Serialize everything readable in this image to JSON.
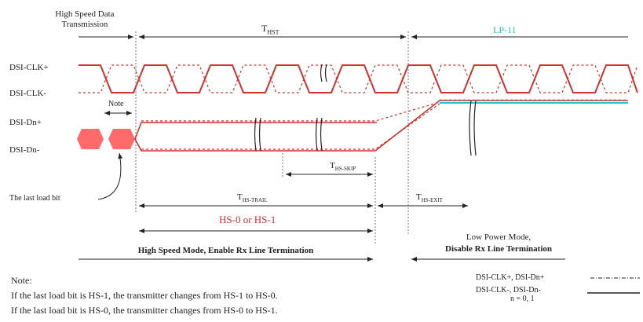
{
  "diagram": {
    "title_line1": "High Speed Data",
    "title_line2": "Transmission",
    "t_hst": "Tₙₛₜ",
    "t_hst_label": "T",
    "t_hst_sub": "HST",
    "lp11_label": "LP-11",
    "signals": {
      "clk_plus": "DSI-CLK+",
      "clk_minus": "DSI-CLK-",
      "dn_plus": "DSI-Dn+",
      "dn_minus": "DSI-Dn-"
    },
    "note_marker": "Note",
    "last_load_bit": "The last load bit",
    "t_hs_skip": "T",
    "t_hs_skip_sub": "HS-SKIP",
    "t_hs_trail": "T",
    "t_hs_trail_sub": "HS-TRAIL",
    "t_hs_exit": "T",
    "t_hs_exit_sub": "HS-EXIT",
    "hs_state": "HS-0 or HS-1",
    "hs_mode": "High Speed Mode, Enable Rx Line Termination",
    "lp_mode_line1": "Low Power Mode,",
    "lp_mode_line2": "Disable Rx Line Termination",
    "notes": {
      "heading": "Note:",
      "line1": "If the last load bit is HS-1, the transmitter changes from HS-1 to HS-0.",
      "line2": "If the last load bit is HS-0, the transmitter changes from HS-0 to HS-1."
    },
    "legend": {
      "dashed_label": "DSI-CLK+, DSI-Dn+",
      "solid_label_line1": "DSI-CLK-, DSI-Dn-",
      "solid_label_line2": "n = 0, 1"
    },
    "colors": {
      "signal": "#d2322d",
      "lp11": "#2bbfd0",
      "ink": "#222222"
    }
  }
}
